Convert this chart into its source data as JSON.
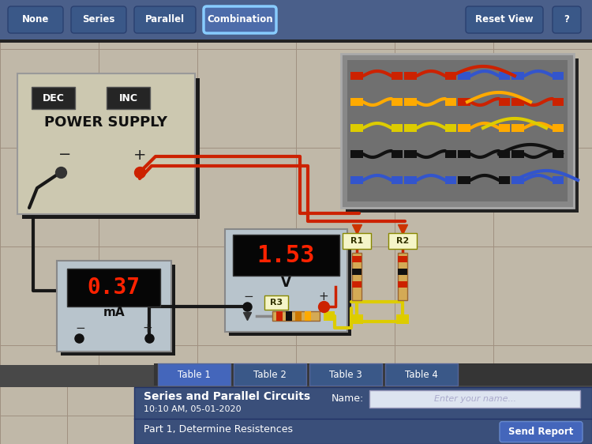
{
  "bg_color": "#b0a898",
  "dark_panel_color": "#484848",
  "top_bar_color": "#4a5f8a",
  "bottom_panel_color": "#3a4f7a",
  "nav_buttons": [
    "None",
    "Series",
    "Parallel",
    "Combination"
  ],
  "nav_button_active": "Combination",
  "right_buttons": [
    "Reset View",
    "?"
  ],
  "table_tabs": [
    "Table 1",
    "Table 2",
    "Table 3",
    "Table 4"
  ],
  "title_text": "Series and Parallel Circuits",
  "subtitle_text": "10:10 AM, 05-01-2020",
  "part_text": "Part 1, Determine Resistences",
  "name_label": "Name:",
  "name_placeholder": "Enter your name...",
  "send_button": "Send Report",
  "power_supply_label": "POWER SUPPLY",
  "dec_label": "DEC",
  "inc_label": "INC",
  "voltmeter_value": "1.53",
  "voltmeter_unit": "V",
  "ammeter_value": "0.37",
  "ammeter_unit": "mA",
  "meter_bg": "#b8c4cc",
  "meter_display_color": "#ff2200",
  "wire_red": "#cc2200",
  "wire_black": "#181818",
  "wire_yellow": "#ddcc00",
  "power_supply_bg": "#ccc8b0",
  "tile_color": "#c0b8a8",
  "tile_line_color": "#a09080"
}
